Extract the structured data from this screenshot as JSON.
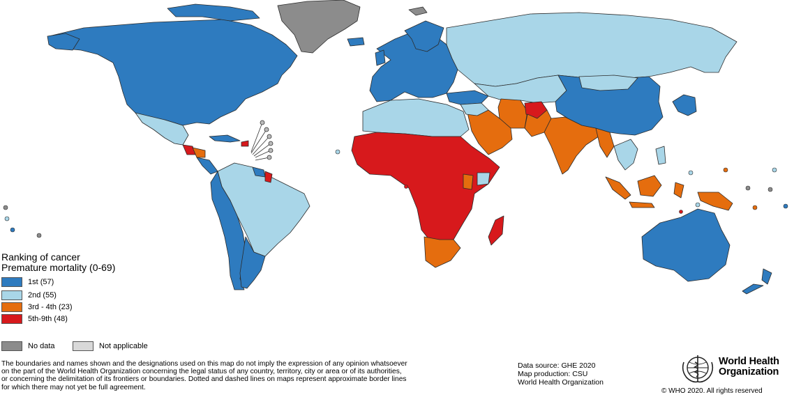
{
  "legend": {
    "title_line1": "Ranking of cancer",
    "title_line2": "Premature mortality (0-69)",
    "items": [
      {
        "label": "1st (57)",
        "color": "#2e7bbf"
      },
      {
        "label": "2nd (55)",
        "color": "#a9d6e8"
      },
      {
        "label": "3rd - 4th (23)",
        "color": "#e56d0e"
      },
      {
        "label": "5th-9th (48)",
        "color": "#d7191c"
      }
    ],
    "no_data": {
      "label": "No data",
      "color": "#8c8c8c"
    },
    "not_applicable": {
      "label": "Not applicable",
      "color": "#d9d9d9"
    }
  },
  "disclaimer": [
    "The boundaries and names shown and the designations used on this map do not imply the expression of any opinion whatsoever",
    "on the part of the World Health Organization concerning the legal status of any country, territory, city or area or of its authorities,",
    "or concerning the delimitation of its frontiers or boundaries. Dotted and dashed lines on maps represent approximate border lines",
    "for which there may not yet be full agreement."
  ],
  "source": {
    "data_source": "Data source: GHE 2020",
    "map_production": "Map production: CSU",
    "organization": "World Health Organization"
  },
  "logo": {
    "line1": "World Health",
    "line2": "Organization"
  },
  "copyright": "© WHO 2020. All rights reserved"
}
